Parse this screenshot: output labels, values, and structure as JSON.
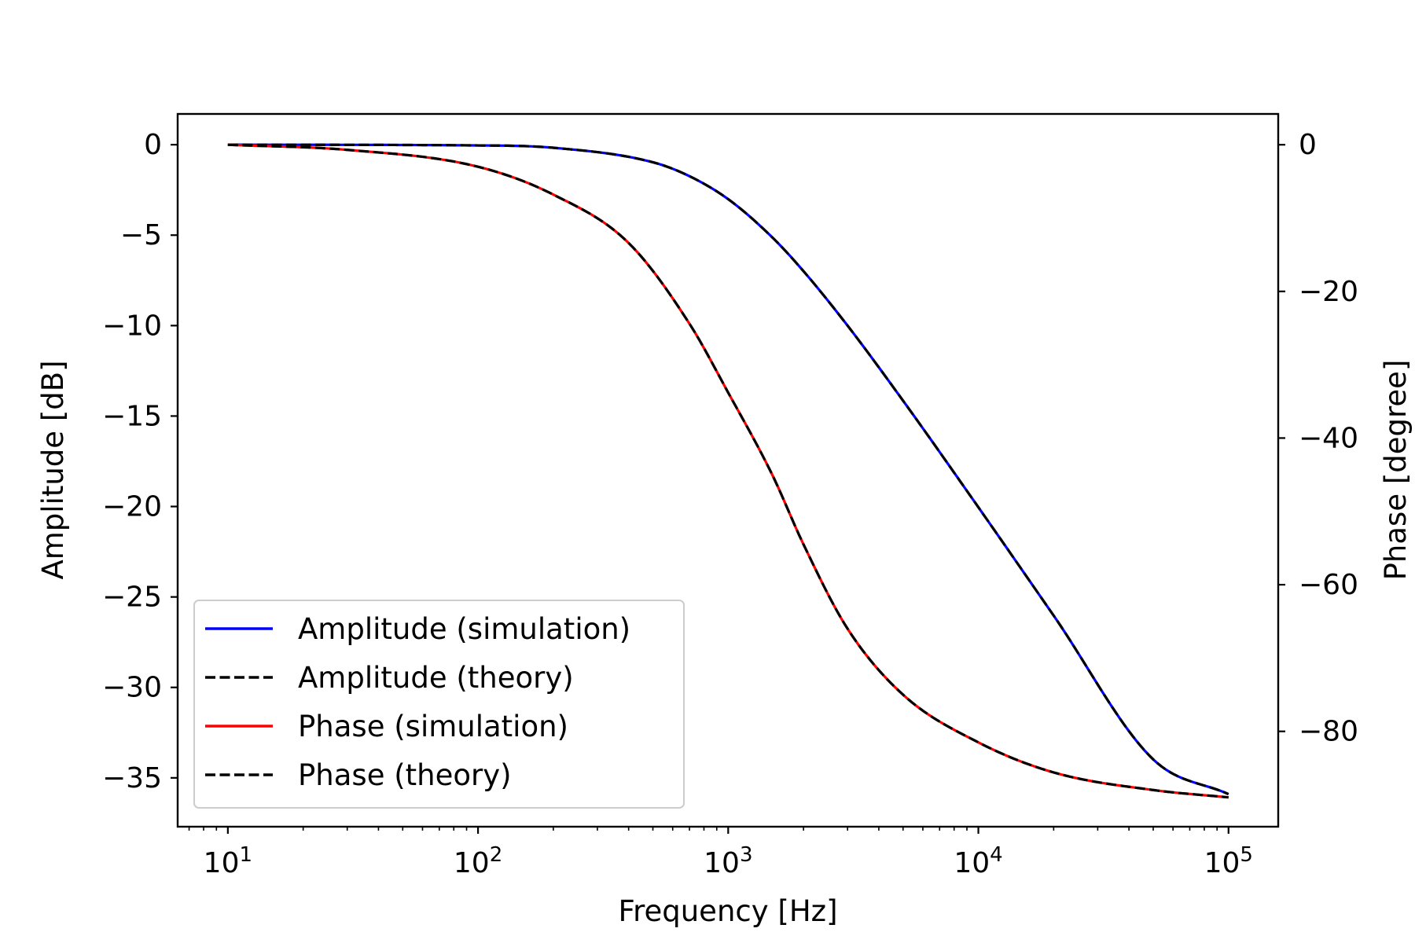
{
  "chart_data": {
    "type": "line",
    "xlabel": "Frequency [Hz]",
    "ylabel": "Amplitude [dB]",
    "y2label": "Phase [degree]",
    "xscale": "log",
    "xlim": [
      6.3,
      158000
    ],
    "ylim": [
      -37.7,
      1.7
    ],
    "y2lim": [
      -93.0,
      4.2
    ],
    "grid": false,
    "legend_position": "lower-left",
    "x_ticks": [
      {
        "value": 10,
        "base": "10",
        "exp": "1"
      },
      {
        "value": 100,
        "base": "10",
        "exp": "2"
      },
      {
        "value": 1000,
        "base": "10",
        "exp": "3"
      },
      {
        "value": 10000,
        "base": "10",
        "exp": "4"
      },
      {
        "value": 100000,
        "base": "10",
        "exp": "5"
      }
    ],
    "y_ticks": [
      {
        "value": 0,
        "label": "0"
      },
      {
        "value": -5,
        "label": "−5"
      },
      {
        "value": -10,
        "label": "−10"
      },
      {
        "value": -15,
        "label": "−15"
      },
      {
        "value": -20,
        "label": "−20"
      },
      {
        "value": -25,
        "label": "−25"
      },
      {
        "value": -30,
        "label": "−30"
      },
      {
        "value": -35,
        "label": "−35"
      }
    ],
    "y2_ticks": [
      {
        "value": 0,
        "label": "0"
      },
      {
        "value": -20,
        "label": "−20"
      },
      {
        "value": -40,
        "label": "−40"
      },
      {
        "value": -60,
        "label": "−60"
      },
      {
        "value": -80,
        "label": "−80"
      }
    ],
    "series": [
      {
        "name": "Amplitude (simulation)",
        "axis": "left",
        "color": "#0000ff",
        "style": "solid",
        "x": [
          10,
          100,
          200,
          500,
          700,
          1000,
          1500,
          2000,
          3000,
          5000,
          10000,
          20000,
          50000,
          100000
        ],
        "y": [
          0,
          -0.04,
          -0.17,
          -0.97,
          -1.74,
          -3.01,
          -5.12,
          -6.99,
          -10.0,
          -14.15,
          -20.04,
          -26.03,
          -33.98,
          -35.9
        ]
      },
      {
        "name": "Amplitude (theory)",
        "axis": "left",
        "color": "#000000",
        "style": "dashed",
        "x": [
          10,
          100,
          200,
          500,
          700,
          1000,
          1500,
          2000,
          3000,
          5000,
          10000,
          20000,
          50000,
          100000
        ],
        "y": [
          0,
          -0.04,
          -0.17,
          -0.97,
          -1.74,
          -3.01,
          -5.12,
          -6.99,
          -10.0,
          -14.15,
          -20.04,
          -26.03,
          -33.98,
          -35.9
        ]
      },
      {
        "name": "Phase (simulation)",
        "axis": "right",
        "color": "#ff0000",
        "style": "solid",
        "x": [
          10,
          30,
          100,
          200,
          400,
          700,
          1000,
          1500,
          2000,
          3000,
          5000,
          10000,
          20000,
          50000,
          100000
        ],
        "y": [
          0,
          -0.7,
          -3.0,
          -6.8,
          -13.4,
          -24.4,
          -33.8,
          -45.0,
          -54.5,
          -66.0,
          -75.0,
          -81.5,
          -85.6,
          -88.0,
          -89.0
        ]
      },
      {
        "name": "Phase (theory)",
        "axis": "right",
        "color": "#000000",
        "style": "dashed",
        "x": [
          10,
          30,
          100,
          200,
          400,
          700,
          1000,
          1500,
          2000,
          3000,
          5000,
          10000,
          20000,
          50000,
          100000
        ],
        "y": [
          0,
          -0.7,
          -3.0,
          -6.8,
          -13.4,
          -24.4,
          -33.8,
          -45.0,
          -54.5,
          -66.0,
          -75.0,
          -81.5,
          -85.6,
          -88.0,
          -89.0
        ]
      }
    ]
  }
}
